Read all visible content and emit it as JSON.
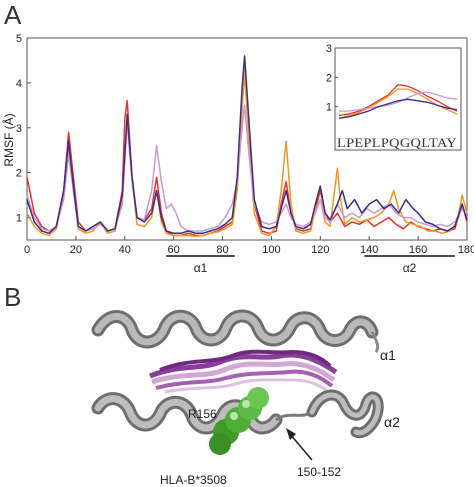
{
  "panels": {
    "a": "A",
    "b": "B"
  },
  "chart_data": {
    "type": "line",
    "ylabel": "RMSF (Å)",
    "xlim": [
      0,
      180
    ],
    "ylim": [
      0.5,
      5
    ],
    "x_ticks": [
      "0",
      "20",
      "40",
      "60",
      "80",
      "100",
      "120",
      "140",
      "160",
      "180"
    ],
    "y_ticks": [
      "1",
      "2",
      "3",
      "4",
      "5"
    ],
    "x_tick_values": [
      0,
      20,
      40,
      60,
      80,
      100,
      120,
      140,
      160,
      180
    ],
    "y_tick_values": [
      1,
      2,
      3,
      4,
      5
    ],
    "regions": [
      {
        "label": "α1",
        "start": 57,
        "end": 85
      },
      {
        "label": "α2",
        "start": 138,
        "end": 175
      }
    ],
    "series": [
      {
        "color": "#e8322a",
        "values": [
          [
            0,
            1.9
          ],
          [
            3,
            1.1
          ],
          [
            6,
            0.8
          ],
          [
            9,
            0.7
          ],
          [
            12,
            0.8
          ],
          [
            15,
            1.6
          ],
          [
            17,
            2.9
          ],
          [
            19,
            1.9
          ],
          [
            21,
            0.9
          ],
          [
            24,
            0.7
          ],
          [
            27,
            0.8
          ],
          [
            30,
            0.9
          ],
          [
            33,
            0.7
          ],
          [
            36,
            0.75
          ],
          [
            39,
            1.6
          ],
          [
            40,
            3.2
          ],
          [
            41,
            3.6
          ],
          [
            43,
            1.9
          ],
          [
            45,
            1.0
          ],
          [
            48,
            0.95
          ],
          [
            51,
            1.2
          ],
          [
            53,
            1.9
          ],
          [
            55,
            1.1
          ],
          [
            57,
            0.7
          ],
          [
            60,
            0.6
          ],
          [
            63,
            0.6
          ],
          [
            66,
            0.65
          ],
          [
            69,
            0.6
          ],
          [
            72,
            0.6
          ],
          [
            75,
            0.65
          ],
          [
            78,
            0.7
          ],
          [
            81,
            0.8
          ],
          [
            84,
            0.9
          ],
          [
            86,
            1.7
          ],
          [
            88,
            3.6
          ],
          [
            89,
            4.2
          ],
          [
            91,
            2.8
          ],
          [
            93,
            1.3
          ],
          [
            96,
            0.7
          ],
          [
            99,
            0.65
          ],
          [
            102,
            0.7
          ],
          [
            104,
            1.3
          ],
          [
            106,
            1.8
          ],
          [
            108,
            1.1
          ],
          [
            110,
            0.75
          ],
          [
            113,
            0.7
          ],
          [
            116,
            0.75
          ],
          [
            118,
            1.2
          ],
          [
            120,
            1.6
          ],
          [
            122,
            1.1
          ],
          [
            124,
            0.9
          ],
          [
            127,
            1.1
          ],
          [
            130,
            0.8
          ],
          [
            133,
            0.9
          ],
          [
            136,
            0.85
          ],
          [
            139,
            0.95
          ],
          [
            142,
            0.8
          ],
          [
            145,
            0.9
          ],
          [
            148,
            1.0
          ],
          [
            151,
            0.85
          ],
          [
            154,
            0.75
          ],
          [
            157,
            0.9
          ],
          [
            160,
            0.8
          ],
          [
            163,
            0.75
          ],
          [
            166,
            0.7
          ],
          [
            169,
            0.75
          ],
          [
            172,
            0.7
          ],
          [
            175,
            0.75
          ],
          [
            177,
            1.1
          ],
          [
            178,
            1.3
          ],
          [
            180,
            0.9
          ]
        ]
      },
      {
        "color": "#f29624",
        "values": [
          [
            0,
            1.1
          ],
          [
            3,
            0.8
          ],
          [
            6,
            0.65
          ],
          [
            9,
            0.6
          ],
          [
            12,
            0.75
          ],
          [
            15,
            1.5
          ],
          [
            17,
            2.6
          ],
          [
            19,
            1.6
          ],
          [
            21,
            0.75
          ],
          [
            24,
            0.65
          ],
          [
            27,
            0.7
          ],
          [
            30,
            0.9
          ],
          [
            33,
            0.65
          ],
          [
            36,
            0.7
          ],
          [
            39,
            1.4
          ],
          [
            41,
            3.2
          ],
          [
            43,
            1.8
          ],
          [
            45,
            0.85
          ],
          [
            48,
            0.8
          ],
          [
            51,
            1.0
          ],
          [
            53,
            1.6
          ],
          [
            55,
            0.9
          ],
          [
            57,
            0.65
          ],
          [
            60,
            0.6
          ],
          [
            63,
            0.6
          ],
          [
            66,
            0.6
          ],
          [
            69,
            0.58
          ],
          [
            72,
            0.6
          ],
          [
            75,
            0.65
          ],
          [
            78,
            0.68
          ],
          [
            81,
            0.75
          ],
          [
            84,
            0.85
          ],
          [
            86,
            1.6
          ],
          [
            88,
            3.4
          ],
          [
            89,
            4.3
          ],
          [
            91,
            2.5
          ],
          [
            93,
            1.1
          ],
          [
            96,
            0.65
          ],
          [
            99,
            0.6
          ],
          [
            102,
            0.8
          ],
          [
            104,
            1.6
          ],
          [
            106,
            2.7
          ],
          [
            108,
            1.3
          ],
          [
            110,
            0.7
          ],
          [
            113,
            0.65
          ],
          [
            116,
            0.7
          ],
          [
            118,
            1.2
          ],
          [
            120,
            1.4
          ],
          [
            122,
            0.9
          ],
          [
            124,
            0.8
          ],
          [
            127,
            2.1
          ],
          [
            128,
            1.5
          ],
          [
            130,
            0.85
          ],
          [
            133,
            1.0
          ],
          [
            136,
            0.9
          ],
          [
            139,
            0.95
          ],
          [
            142,
            1.0
          ],
          [
            145,
            1.1
          ],
          [
            148,
            1.3
          ],
          [
            150,
            1.6
          ],
          [
            152,
            1.2
          ],
          [
            155,
            0.9
          ],
          [
            158,
            0.85
          ],
          [
            161,
            0.8
          ],
          [
            164,
            0.7
          ],
          [
            167,
            0.7
          ],
          [
            170,
            0.65
          ],
          [
            173,
            0.7
          ],
          [
            176,
            0.9
          ],
          [
            178,
            1.5
          ],
          [
            180,
            1.1
          ]
        ]
      },
      {
        "color": "#c79ad8",
        "values": [
          [
            0,
            1.5
          ],
          [
            3,
            1.0
          ],
          [
            6,
            0.75
          ],
          [
            9,
            0.7
          ],
          [
            12,
            0.8
          ],
          [
            15,
            1.4
          ],
          [
            17,
            2.4
          ],
          [
            19,
            1.6
          ],
          [
            21,
            0.8
          ],
          [
            24,
            0.7
          ],
          [
            27,
            0.75
          ],
          [
            30,
            0.85
          ],
          [
            33,
            0.7
          ],
          [
            36,
            0.75
          ],
          [
            39,
            1.3
          ],
          [
            41,
            3.1
          ],
          [
            43,
            1.8
          ],
          [
            45,
            1.0
          ],
          [
            48,
            0.95
          ],
          [
            51,
            1.6
          ],
          [
            53,
            2.6
          ],
          [
            55,
            1.8
          ],
          [
            57,
            1.2
          ],
          [
            59,
            1.3
          ],
          [
            61,
            1.1
          ],
          [
            63,
            0.8
          ],
          [
            66,
            0.7
          ],
          [
            69,
            0.7
          ],
          [
            72,
            0.7
          ],
          [
            75,
            0.75
          ],
          [
            78,
            0.8
          ],
          [
            81,
            1.0
          ],
          [
            84,
            1.3
          ],
          [
            86,
            1.8
          ],
          [
            88,
            3.0
          ],
          [
            89,
            3.5
          ],
          [
            91,
            2.3
          ],
          [
            93,
            1.3
          ],
          [
            96,
            0.9
          ],
          [
            99,
            0.85
          ],
          [
            102,
            0.9
          ],
          [
            104,
            1.1
          ],
          [
            106,
            1.3
          ],
          [
            108,
            1.0
          ],
          [
            110,
            0.85
          ],
          [
            113,
            0.8
          ],
          [
            116,
            0.9
          ],
          [
            118,
            1.1
          ],
          [
            120,
            1.4
          ],
          [
            122,
            1.0
          ],
          [
            124,
            0.9
          ],
          [
            127,
            1.3
          ],
          [
            130,
            1.0
          ],
          [
            133,
            1.1
          ],
          [
            136,
            1.0
          ],
          [
            139,
            1.2
          ],
          [
            142,
            1.1
          ],
          [
            145,
            1.2
          ],
          [
            148,
            1.3
          ],
          [
            151,
            1.1
          ],
          [
            154,
            1.0
          ],
          [
            157,
            1.0
          ],
          [
            160,
            0.9
          ],
          [
            163,
            0.85
          ],
          [
            166,
            0.8
          ],
          [
            169,
            0.85
          ],
          [
            172,
            0.8
          ],
          [
            175,
            0.9
          ],
          [
            178,
            1.2
          ],
          [
            180,
            1.0
          ]
        ]
      },
      {
        "color": "#3b2f84",
        "values": [
          [
            0,
            1.4
          ],
          [
            3,
            0.9
          ],
          [
            6,
            0.7
          ],
          [
            9,
            0.65
          ],
          [
            12,
            0.8
          ],
          [
            15,
            1.6
          ],
          [
            17,
            2.7
          ],
          [
            19,
            1.7
          ],
          [
            21,
            0.8
          ],
          [
            24,
            0.7
          ],
          [
            27,
            0.8
          ],
          [
            30,
            0.9
          ],
          [
            33,
            0.7
          ],
          [
            36,
            0.75
          ],
          [
            39,
            1.5
          ],
          [
            41,
            3.3
          ],
          [
            43,
            1.9
          ],
          [
            45,
            1.0
          ],
          [
            48,
            0.9
          ],
          [
            51,
            1.1
          ],
          [
            53,
            1.6
          ],
          [
            55,
            1.0
          ],
          [
            57,
            0.7
          ],
          [
            60,
            0.65
          ],
          [
            63,
            0.65
          ],
          [
            66,
            0.7
          ],
          [
            69,
            0.65
          ],
          [
            72,
            0.65
          ],
          [
            75,
            0.7
          ],
          [
            78,
            0.75
          ],
          [
            81,
            0.85
          ],
          [
            84,
            1.0
          ],
          [
            86,
            1.9
          ],
          [
            88,
            3.9
          ],
          [
            89,
            4.6
          ],
          [
            91,
            3.0
          ],
          [
            93,
            1.4
          ],
          [
            96,
            0.8
          ],
          [
            99,
            0.75
          ],
          [
            102,
            0.8
          ],
          [
            104,
            1.2
          ],
          [
            106,
            1.6
          ],
          [
            108,
            1.1
          ],
          [
            110,
            0.8
          ],
          [
            113,
            0.75
          ],
          [
            116,
            0.85
          ],
          [
            118,
            1.3
          ],
          [
            120,
            1.7
          ],
          [
            122,
            1.1
          ],
          [
            124,
            0.95
          ],
          [
            127,
            1.3
          ],
          [
            129,
            1.6
          ],
          [
            131,
            1.2
          ],
          [
            134,
            1.4
          ],
          [
            137,
            1.1
          ],
          [
            140,
            1.3
          ],
          [
            143,
            1.4
          ],
          [
            146,
            1.2
          ],
          [
            149,
            1.3
          ],
          [
            152,
            1.1
          ],
          [
            155,
            1.4
          ],
          [
            158,
            1.2
          ],
          [
            160,
            1.1
          ],
          [
            163,
            0.9
          ],
          [
            166,
            0.85
          ],
          [
            169,
            0.75
          ],
          [
            172,
            0.7
          ],
          [
            175,
            0.8
          ],
          [
            178,
            1.3
          ],
          [
            180,
            0.95
          ]
        ]
      }
    ],
    "inset": {
      "sequence": "LPEPLPQGQLTAY",
      "ylim": [
        0,
        3
      ],
      "y_ticks": [
        "1",
        "2",
        "3"
      ],
      "y_tick_values": [
        1,
        2,
        3
      ],
      "series": [
        {
          "color": "#e8322a",
          "values": [
            0.7,
            0.75,
            0.85,
            1.0,
            1.2,
            1.4,
            1.75,
            1.7,
            1.55,
            1.35,
            1.2,
            1.0,
            0.85
          ]
        },
        {
          "color": "#f29624",
          "values": [
            0.6,
            0.7,
            0.8,
            0.95,
            1.15,
            1.35,
            1.6,
            1.6,
            1.45,
            1.25,
            1.05,
            0.9,
            0.75
          ]
        },
        {
          "color": "#c79ad8",
          "values": [
            0.85,
            0.85,
            0.9,
            0.95,
            1.0,
            1.05,
            1.15,
            1.3,
            1.45,
            1.5,
            1.4,
            1.3,
            1.25
          ]
        },
        {
          "color": "#3b2f84",
          "values": [
            0.6,
            0.65,
            0.75,
            0.85,
            1.0,
            1.1,
            1.2,
            1.25,
            1.2,
            1.15,
            1.05,
            0.95,
            0.9
          ]
        }
      ]
    }
  },
  "structure": {
    "label_alpha1": "α1",
    "label_alpha2": "α2",
    "label_r156": "R156",
    "label_hla": "HLA-B*3508",
    "label_150": "150-152",
    "colors": {
      "helix": "#8f8f8f",
      "helix_dark": "#5e5e5e",
      "helix_light": "#c8c8c8",
      "peptide": "#8a3d99",
      "peptide_light": "#d4a6d6",
      "sphere": "#3f9a2c",
      "sphere_light": "#7fd06a"
    }
  }
}
